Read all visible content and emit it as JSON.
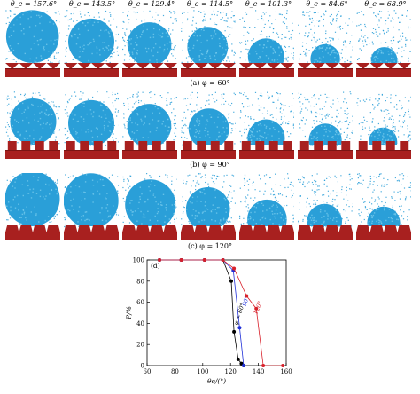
{
  "header_angles": [
    "θ_e = 157.6°",
    "θ_e = 143.5°",
    "θ_e = 129.4°",
    "θ_e = 114.5°",
    "θ_e = 101.3°",
    "θ_e = 84.6°",
    "θ_e = 68.9°"
  ],
  "captions": {
    "a": "(a)  φ = 60°",
    "b": "(b)  φ = 90°",
    "c": "(c)  φ = 120°"
  },
  "colors": {
    "water": "#2a9fd8",
    "solid": "#a8201f",
    "series_60": "#000000",
    "series_90": "#1f2fd8",
    "series_120": "#d8202a"
  },
  "rows": [
    {
      "id": "a",
      "texture": "triangle",
      "droplet_radius": [
        0.48,
        0.42,
        0.4,
        0.37,
        0.33,
        0.27,
        0.24
      ]
    },
    {
      "id": "b",
      "texture": "square",
      "droplet_radius": [
        0.42,
        0.42,
        0.4,
        0.37,
        0.34,
        0.3,
        0.26
      ]
    },
    {
      "id": "c",
      "texture": "trapezoid",
      "droplet_radius": [
        0.5,
        0.5,
        0.46,
        0.4,
        0.36,
        0.32,
        0.3
      ]
    }
  ],
  "chart_data": {
    "type": "line",
    "panel_label": "(d)",
    "xlabel": "θe/(°)",
    "ylabel": "P/%",
    "xlim": [
      60,
      160
    ],
    "ylim": [
      0,
      100
    ],
    "xticks": [
      60,
      80,
      100,
      120,
      140,
      160
    ],
    "yticks": [
      0,
      20,
      40,
      60,
      80,
      100
    ],
    "series": [
      {
        "name": "φ = 60°",
        "color": "#000000",
        "x": [
          68.9,
          84.6,
          101.3,
          114.5,
          120.5,
          122.5,
          125.5,
          127.8,
          129.4
        ],
        "y": [
          100,
          100,
          100,
          100,
          80,
          32,
          6,
          2,
          0
        ]
      },
      {
        "name": "90°",
        "color": "#1f2fd8",
        "x": [
          68.9,
          84.6,
          101.3,
          114.5,
          122.0,
          126.5,
          129.4
        ],
        "y": [
          100,
          100,
          100,
          100,
          90,
          36,
          0
        ]
      },
      {
        "name": "120°",
        "color": "#d8202a",
        "x": [
          68.9,
          84.6,
          101.3,
          114.5,
          122.5,
          131.5,
          138.5,
          143.5,
          157.6
        ],
        "y": [
          100,
          100,
          100,
          100,
          92,
          66,
          54,
          0,
          0
        ]
      }
    ]
  }
}
